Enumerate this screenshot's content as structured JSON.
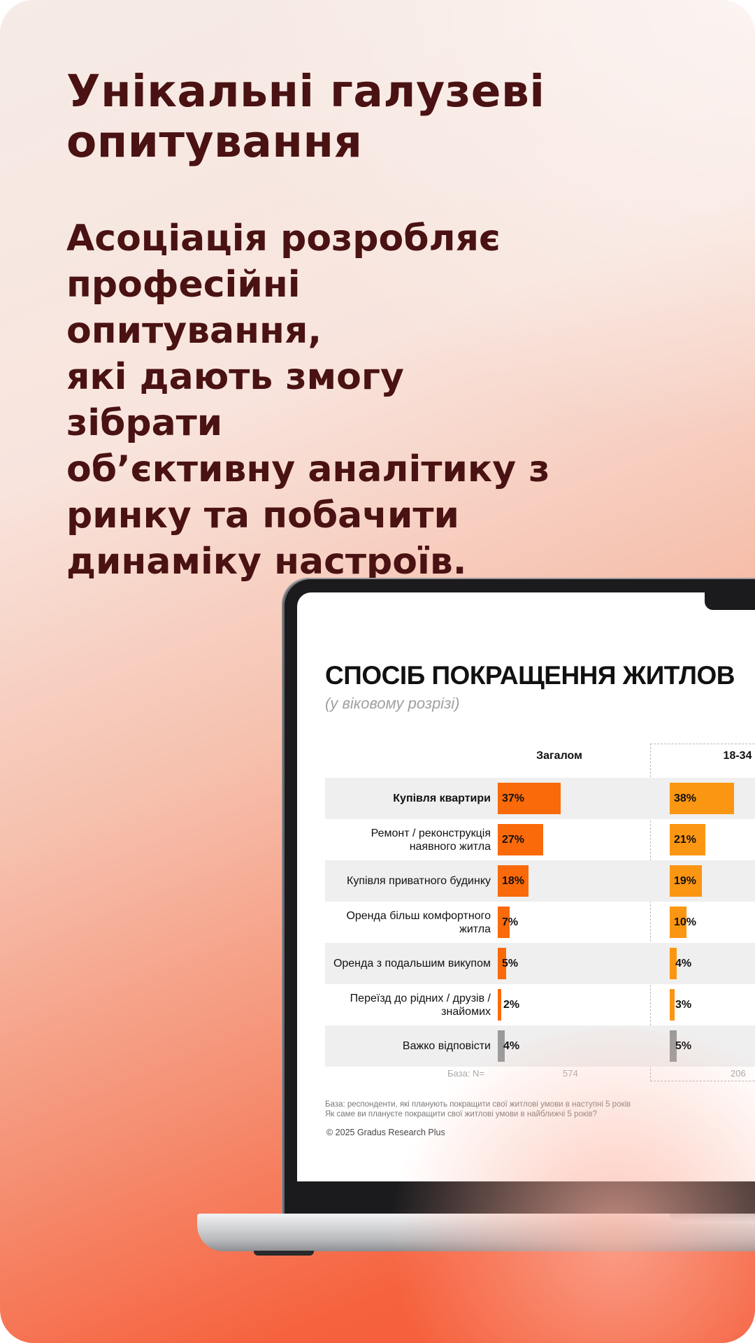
{
  "headline": "Унікальні галузеві опитування",
  "body": "Асоціація розробляє\nпрофесійні опитування,\nякі дають змогу зібрати\nоб’єктивну аналітику з\nринку та побачити\nдинаміку настроїв.",
  "chart_data": {
    "type": "bar",
    "orientation": "horizontal",
    "title": "СПОСІБ ПОКРАЩЕННЯ ЖИТЛОВ",
    "subtitle": "(у віковому розрізі)",
    "categories": [
      "Купівля квартири",
      "Ремонт / реконструкція наявного житла",
      "Купівля приватного будинку",
      "Оренда більш комфортного житла",
      "Оренда з подальшим викупом",
      "Переїзд до рідних / друзів / знайомих",
      "Важко відповісти"
    ],
    "category_lines": [
      [
        "Купівля квартири"
      ],
      [
        "Ремонт / реконструкція",
        "наявного житла"
      ],
      [
        "Купівля приватного будинку"
      ],
      [
        "Оренда більш комфортного",
        "житла"
      ],
      [
        "Оренда з подальшим викупом"
      ],
      [
        "Переїзд до рідних / друзів /",
        "знайомих"
      ],
      [
        "Важко відповісти"
      ]
    ],
    "series": [
      {
        "name": "Загалом",
        "values": [
          37,
          27,
          18,
          7,
          5,
          2,
          4
        ],
        "base": "574",
        "color": "#fa6a0a",
        "na_color": "#9a9a9a"
      },
      {
        "name": "18-34",
        "values": [
          38,
          21,
          19,
          10,
          4,
          3,
          5
        ],
        "base": "206",
        "color": "#fb9612",
        "na_color": "#9a9a9a"
      }
    ],
    "value_labels": [
      [
        "37%",
        "27%",
        "18%",
        "7%",
        "5%",
        "2%",
        "4%"
      ],
      [
        "38%",
        "21%",
        "19%",
        "10%",
        "4%",
        "3%",
        "5%"
      ]
    ],
    "base_label": "База: N=",
    "footnote_lines": [
      "База: респонденти, які планують покращити свої житлові умови в наступні 5 років",
      "Як саме ви плануєте покращити свої житлові умови в найближчі 5 років?"
    ],
    "copyright": "© 2025 Gradus Research Plus"
  }
}
